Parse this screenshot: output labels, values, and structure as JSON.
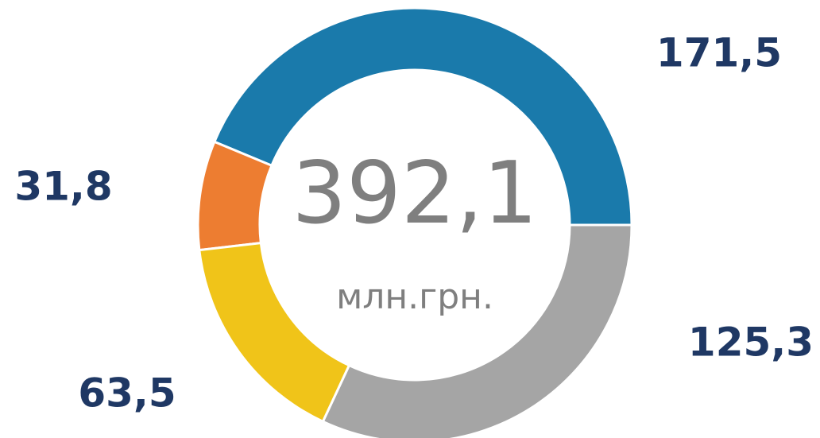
{
  "chart_data": {
    "type": "donut",
    "values": [
      171.5,
      31.8,
      63.5,
      125.3
    ],
    "value_labels": [
      "171,5",
      "31,8",
      "63,5",
      "125,3"
    ],
    "colors": [
      "#1a7aab",
      "#ed7d31",
      "#f0c419",
      "#a5a5a5"
    ],
    "total": {
      "value": 392.1,
      "label": "392,1"
    },
    "unit": "млн.грн."
  }
}
